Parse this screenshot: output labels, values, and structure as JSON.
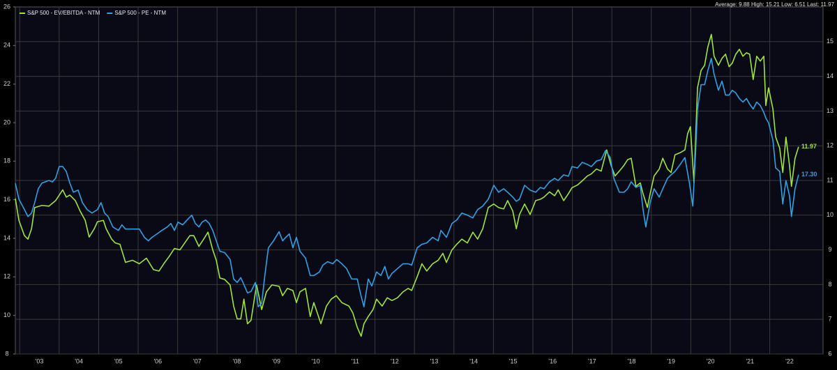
{
  "chart_data": {
    "type": "line",
    "stats": "Average: 9.88 High: 15.21 Low: 6.51 Last: 11.97",
    "xlim": [
      2002.89,
      2023.35
    ],
    "xticks": [
      {
        "value": 2003,
        "label": "'03"
      },
      {
        "value": 2004,
        "label": "'04"
      },
      {
        "value": 2005,
        "label": "'05"
      },
      {
        "value": 2006,
        "label": "'06"
      },
      {
        "value": 2007,
        "label": "'07"
      },
      {
        "value": 2008,
        "label": "'08"
      },
      {
        "value": 2009,
        "label": "'09"
      },
      {
        "value": 2010,
        "label": "'10"
      },
      {
        "value": 2011,
        "label": "'11"
      },
      {
        "value": 2012,
        "label": "'12"
      },
      {
        "value": 2013,
        "label": "'13"
      },
      {
        "value": 2014,
        "label": "'14"
      },
      {
        "value": 2015,
        "label": "'15"
      },
      {
        "value": 2016,
        "label": "'16"
      },
      {
        "value": 2017,
        "label": "'17"
      },
      {
        "value": 2018,
        "label": "'18"
      },
      {
        "value": 2019,
        "label": "'19"
      },
      {
        "value": 2020,
        "label": "'20"
      },
      {
        "value": 2021,
        "label": "'21"
      },
      {
        "value": 2022,
        "label": "'22"
      }
    ],
    "ylim": [
      8,
      26
    ],
    "yticks": [
      8,
      10,
      12,
      14,
      16,
      18,
      20,
      22,
      24,
      26
    ],
    "y2lim": [
      6,
      16
    ],
    "y2ticks": [
      6,
      7,
      8,
      9,
      10,
      11,
      12,
      13,
      14,
      15
    ],
    "grid": true,
    "legend": "top-left",
    "series": [
      {
        "name": "S&P 500 - EV/EBITDA - NTM",
        "color": "#9fe53a",
        "axis": "y2",
        "end_label": "11.97",
        "x": [
          2002.89,
          2002.98,
          2003.12,
          2003.21,
          2003.3,
          2003.38,
          2003.56,
          2003.74,
          2003.91,
          2004.09,
          2004.18,
          2004.27,
          2004.41,
          2004.53,
          2004.66,
          2004.76,
          2004.89,
          2004.97,
          2005.12,
          2005.19,
          2005.33,
          2005.42,
          2005.54,
          2005.68,
          2005.86,
          2006.03,
          2006.21,
          2006.39,
          2006.53,
          2006.65,
          2006.78,
          2006.92,
          2007.06,
          2007.18,
          2007.31,
          2007.41,
          2007.54,
          2007.66,
          2007.77,
          2007.89,
          2007.98,
          2008.07,
          2008.19,
          2008.33,
          2008.42,
          2008.51,
          2008.6,
          2008.68,
          2008.77,
          2008.86,
          2009.0,
          2009.13,
          2009.25,
          2009.39,
          2009.57,
          2009.66,
          2009.78,
          2009.92,
          2010.01,
          2010.1,
          2010.24,
          2010.36,
          2010.45,
          2010.54,
          2010.63,
          2010.77,
          2010.89,
          2011.02,
          2011.16,
          2011.34,
          2011.44,
          2011.55,
          2011.65,
          2011.72,
          2011.83,
          2011.95,
          2012.04,
          2012.18,
          2012.31,
          2012.43,
          2012.57,
          2012.71,
          2012.84,
          2012.93,
          2013.07,
          2013.19,
          2013.31,
          2013.46,
          2013.6,
          2013.72,
          2013.81,
          2013.95,
          2014.07,
          2014.2,
          2014.34,
          2014.48,
          2014.6,
          2014.73,
          2014.87,
          2015.01,
          2015.13,
          2015.26,
          2015.36,
          2015.49,
          2015.58,
          2015.66,
          2015.79,
          2015.93,
          2016.07,
          2016.19,
          2016.28,
          2016.42,
          2016.55,
          2016.64,
          2016.78,
          2016.9,
          2016.99,
          2017.13,
          2017.25,
          2017.38,
          2017.48,
          2017.61,
          2017.73,
          2017.87,
          2017.98,
          2018.08,
          2018.19,
          2018.31,
          2018.4,
          2018.49,
          2018.61,
          2018.72,
          2018.79,
          2018.9,
          2018.97,
          2019.07,
          2019.2,
          2019.29,
          2019.41,
          2019.5,
          2019.6,
          2019.73,
          2019.85,
          2019.92,
          2019.99,
          2020.08,
          2020.17,
          2020.26,
          2020.35,
          2020.43,
          2020.52,
          2020.59,
          2020.7,
          2020.79,
          2020.88,
          2020.97,
          2021.05,
          2021.14,
          2021.23,
          2021.32,
          2021.41,
          2021.49,
          2021.58,
          2021.67,
          2021.76,
          2021.85,
          2021.9,
          2021.97,
          2022.08,
          2022.15,
          2022.25,
          2022.33,
          2022.41,
          2022.5,
          2022.55,
          2022.64,
          2022.73
        ],
        "values": [
          10.48,
          9.85,
          9.41,
          9.31,
          9.61,
          10.22,
          10.28,
          10.26,
          10.42,
          10.73,
          10.52,
          10.58,
          10.42,
          10.12,
          9.85,
          9.37,
          9.61,
          9.81,
          9.85,
          9.61,
          9.31,
          9.2,
          9.16,
          8.64,
          8.7,
          8.6,
          8.76,
          8.43,
          8.39,
          8.6,
          8.8,
          9.04,
          9.0,
          9.2,
          9.41,
          9.41,
          9.1,
          9.31,
          9.51,
          9.0,
          8.7,
          8.19,
          8.15,
          7.99,
          7.38,
          7.01,
          7.01,
          7.58,
          6.87,
          6.97,
          7.99,
          7.28,
          7.79,
          7.99,
          7.95,
          7.68,
          7.89,
          7.83,
          7.48,
          7.79,
          7.89,
          7.08,
          7.48,
          7.18,
          6.87,
          7.38,
          7.58,
          7.68,
          7.48,
          7.38,
          7.18,
          6.77,
          6.51,
          6.87,
          7.08,
          7.28,
          7.58,
          7.38,
          7.62,
          7.54,
          7.62,
          7.79,
          7.89,
          7.83,
          8.23,
          8.6,
          8.39,
          8.6,
          8.7,
          8.9,
          8.64,
          9.0,
          9.16,
          9.31,
          9.2,
          9.51,
          9.31,
          9.61,
          10.22,
          10.32,
          10.22,
          10.18,
          10.42,
          10.12,
          9.61,
          10.02,
          10.32,
          10.02,
          10.42,
          10.46,
          10.52,
          10.67,
          10.56,
          10.73,
          10.42,
          10.62,
          10.79,
          10.87,
          10.99,
          11.13,
          11.19,
          11.33,
          11.27,
          11.88,
          11.44,
          11.13,
          11.27,
          11.44,
          11.6,
          11.64,
          10.83,
          10.93,
          10.62,
          10.22,
          10.62,
          11.13,
          11.33,
          11.64,
          11.33,
          11.23,
          11.74,
          11.8,
          11.88,
          12.35,
          12.55,
          10.93,
          13.67,
          14.17,
          14.32,
          14.84,
          15.21,
          14.58,
          14.32,
          14.52,
          14.64,
          14.28,
          14.38,
          14.64,
          14.78,
          14.58,
          14.68,
          14.64,
          13.91,
          14.58,
          14.44,
          14.58,
          13.16,
          13.67,
          13.06,
          12.25,
          11.94,
          11.23,
          12.25,
          11.44,
          10.83,
          11.64,
          11.97
        ]
      },
      {
        "name": "S&P 500 - PE - NTM",
        "color": "#2ea2e4",
        "end_label": "17.30",
        "x": [
          2002.89,
          2002.98,
          2003.12,
          2003.21,
          2003.3,
          2003.38,
          2003.47,
          2003.56,
          2003.74,
          2003.83,
          2003.91,
          2004.0,
          2004.09,
          2004.18,
          2004.27,
          2004.36,
          2004.48,
          2004.59,
          2004.71,
          2004.83,
          2004.97,
          2005.06,
          2005.15,
          2005.24,
          2005.36,
          2005.5,
          2005.59,
          2005.68,
          2005.86,
          2006.03,
          2006.16,
          2006.26,
          2006.35,
          2006.48,
          2006.6,
          2006.74,
          2006.83,
          2006.92,
          2007.01,
          2007.13,
          2007.24,
          2007.36,
          2007.45,
          2007.54,
          2007.62,
          2007.71,
          2007.8,
          2007.89,
          2007.98,
          2008.07,
          2008.19,
          2008.33,
          2008.42,
          2008.51,
          2008.6,
          2008.68,
          2008.77,
          2008.86,
          2008.97,
          2009.04,
          2009.13,
          2009.21,
          2009.3,
          2009.43,
          2009.57,
          2009.66,
          2009.74,
          2009.83,
          2009.92,
          2010.01,
          2010.1,
          2010.24,
          2010.36,
          2010.45,
          2010.59,
          2010.68,
          2010.8,
          2010.93,
          2011.03,
          2011.16,
          2011.28,
          2011.41,
          2011.55,
          2011.65,
          2011.72,
          2011.83,
          2011.92,
          2012.04,
          2012.15,
          2012.25,
          2012.34,
          2012.43,
          2012.57,
          2012.71,
          2012.84,
          2012.93,
          2013.07,
          2013.19,
          2013.31,
          2013.46,
          2013.6,
          2013.67,
          2013.81,
          2013.95,
          2014.07,
          2014.2,
          2014.34,
          2014.48,
          2014.6,
          2014.73,
          2014.87,
          2015.01,
          2015.13,
          2015.26,
          2015.36,
          2015.49,
          2015.58,
          2015.66,
          2015.79,
          2015.93,
          2016.07,
          2016.19,
          2016.28,
          2016.42,
          2016.55,
          2016.64,
          2016.78,
          2016.9,
          2016.99,
          2017.13,
          2017.25,
          2017.38,
          2017.48,
          2017.61,
          2017.73,
          2017.84,
          2017.96,
          2018.05,
          2018.19,
          2018.31,
          2018.4,
          2018.49,
          2018.61,
          2018.72,
          2018.79,
          2018.86,
          2018.97,
          2019.07,
          2019.2,
          2019.29,
          2019.41,
          2019.5,
          2019.6,
          2019.73,
          2019.85,
          2019.96,
          2020.05,
          2020.12,
          2020.17,
          2020.26,
          2020.35,
          2020.43,
          2020.52,
          2020.59,
          2020.7,
          2020.79,
          2020.88,
          2020.97,
          2021.05,
          2021.14,
          2021.23,
          2021.32,
          2021.41,
          2021.49,
          2021.58,
          2021.67,
          2021.76,
          2021.85,
          2021.9,
          2021.97,
          2022.08,
          2022.15,
          2022.25,
          2022.33,
          2022.41,
          2022.5,
          2022.55,
          2022.64,
          2022.73
        ],
        "values": [
          16.86,
          16.03,
          15.49,
          15.13,
          15.31,
          15.85,
          16.57,
          16.86,
          17.0,
          16.93,
          17.11,
          17.72,
          17.72,
          17.47,
          16.86,
          16.39,
          16.5,
          15.85,
          15.49,
          15.31,
          15.49,
          15.85,
          15.31,
          15.13,
          14.59,
          14.41,
          14.7,
          14.48,
          14.48,
          14.48,
          14.05,
          13.87,
          14.05,
          14.23,
          14.41,
          14.59,
          14.77,
          14.41,
          14.84,
          14.7,
          14.95,
          15.2,
          14.77,
          14.59,
          14.84,
          14.95,
          14.77,
          14.41,
          13.87,
          13.33,
          13.26,
          12.9,
          11.89,
          11.71,
          11.96,
          11.6,
          11.17,
          11.24,
          11.71,
          10.45,
          10.63,
          12.07,
          13.51,
          13.87,
          14.34,
          13.87,
          14.05,
          14.23,
          13.51,
          14.05,
          13.33,
          12.97,
          12.07,
          12.07,
          12.25,
          12.61,
          12.79,
          12.68,
          12.9,
          12.68,
          12.43,
          11.89,
          11.89,
          10.99,
          10.45,
          11.89,
          11.53,
          12.25,
          12.07,
          12.54,
          11.89,
          12.18,
          12.43,
          12.68,
          12.68,
          12.61,
          13.51,
          13.69,
          13.76,
          14.05,
          13.87,
          14.41,
          14.05,
          14.77,
          14.95,
          15.31,
          15.2,
          15.06,
          15.49,
          15.67,
          16.03,
          16.75,
          16.39,
          16.57,
          16.39,
          16.14,
          15.92,
          16.03,
          16.75,
          16.5,
          16.39,
          16.64,
          16.57,
          16.93,
          17.11,
          17.0,
          17.29,
          17.22,
          17.72,
          17.65,
          17.94,
          17.83,
          17.72,
          18.01,
          18.08,
          18.55,
          18.19,
          17.11,
          16.39,
          16.39,
          16.57,
          16.93,
          16.64,
          16.75,
          15.49,
          14.59,
          15.85,
          16.57,
          16.14,
          16.57,
          17.11,
          17.29,
          17.47,
          17.83,
          18.19,
          16.93,
          15.67,
          18.37,
          20.71,
          21.97,
          21.97,
          22.69,
          23.33,
          22.51,
          21.68,
          22.15,
          21.43,
          21.43,
          21.68,
          21.54,
          21.25,
          21.07,
          21.25,
          20.96,
          20.71,
          21.07,
          20.89,
          20.53,
          20.24,
          19.99,
          19.09,
          17.65,
          17.47,
          15.78,
          17.0,
          16.21,
          15.13,
          16.57,
          17.3
        ]
      }
    ]
  }
}
